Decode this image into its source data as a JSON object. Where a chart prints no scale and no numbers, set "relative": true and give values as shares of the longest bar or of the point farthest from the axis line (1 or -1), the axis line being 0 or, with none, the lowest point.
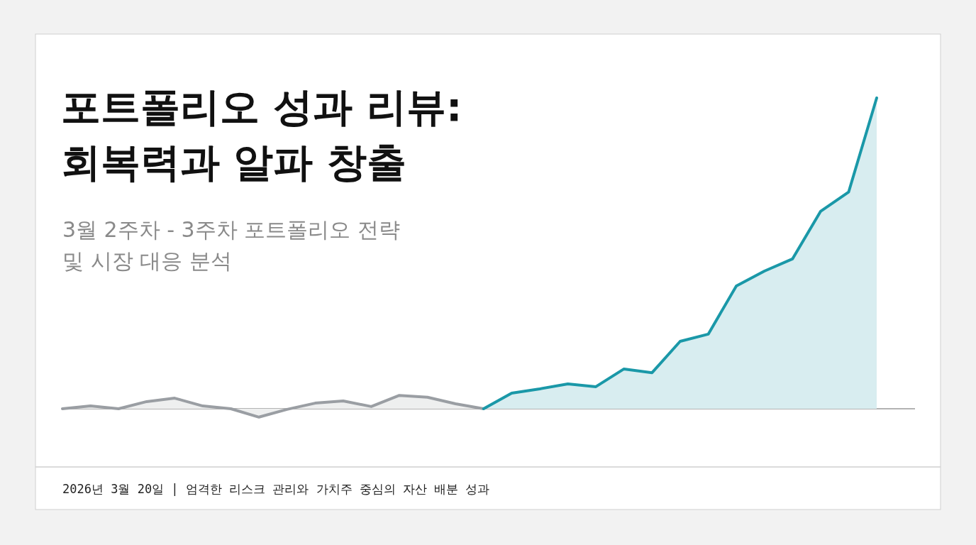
{
  "chart_data": {
    "type": "area",
    "title": "포트폴리오 성과 리뷰:\n회복력과 알파 창출",
    "subtitle": "3월 2주차 - 3주차 포트폴리오 전략\n및 시장 대응 분석",
    "annotations": [
      "2026년 3월 20일 | 엄격한 리스크 관리와 가치주 중심의 자산 배분 성과"
    ],
    "relative": true,
    "categories": [
      null,
      null,
      null,
      null,
      null,
      null,
      null,
      null,
      null,
      null,
      null,
      null,
      null,
      null,
      null,
      null,
      null,
      null,
      null,
      null,
      null,
      null,
      null,
      null,
      null,
      null,
      null,
      null,
      null,
      null
    ],
    "series": [
      {
        "color": "#9a9ea3",
        "values": [
          0,
          0.009,
          0,
          0.023,
          0.034,
          0.009,
          0,
          -0.027,
          -0.002,
          0.018,
          0.025,
          0.007,
          0.043,
          0.037,
          0.016,
          0,
          null,
          null,
          null,
          null,
          null,
          null,
          null,
          null,
          null,
          null,
          null,
          null,
          null,
          null
        ]
      },
      {
        "color": "#1a98a8",
        "values": [
          null,
          null,
          null,
          null,
          null,
          null,
          null,
          null,
          null,
          null,
          null,
          null,
          null,
          null,
          null,
          0,
          0.05,
          0.064,
          0.08,
          0.071,
          0.128,
          0.116,
          0.217,
          0.24,
          0.395,
          0.443,
          0.482,
          0.635,
          0.697,
          1
        ]
      }
    ]
  }
}
